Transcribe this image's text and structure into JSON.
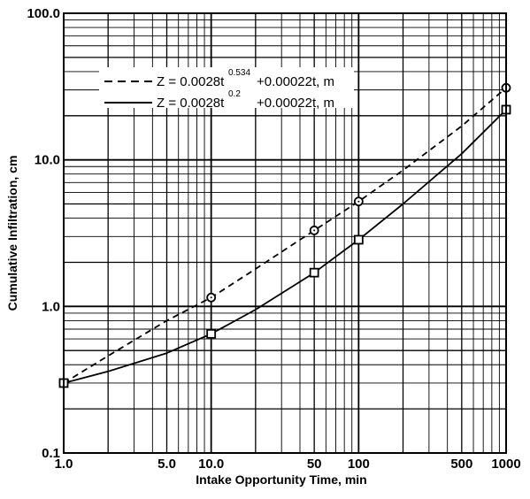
{
  "chart_data": {
    "type": "line",
    "xscale": "log",
    "yscale": "log",
    "xlim": [
      1,
      1000
    ],
    "ylim": [
      0.1,
      100
    ],
    "grid": true,
    "xlabel": "Intake Opportunity Time, min",
    "ylabel": "Cumulative Infiltration, cm",
    "xticks": [
      {
        "value": 1,
        "label": "1.0"
      },
      {
        "value": 5,
        "label": "5.0"
      },
      {
        "value": 10,
        "label": "10.0"
      },
      {
        "value": 50,
        "label": "50"
      },
      {
        "value": 100,
        "label": "100"
      },
      {
        "value": 500,
        "label": "500"
      },
      {
        "value": 1000,
        "label": "1000"
      }
    ],
    "yticks": [
      {
        "value": 0.1,
        "label": "0.1"
      },
      {
        "value": 1,
        "label": "1.0"
      },
      {
        "value": 10,
        "label": "10.0"
      },
      {
        "value": 100,
        "label": "100.0"
      }
    ],
    "legend_position": "top-left",
    "series": [
      {
        "legend_main": "Z = 0.0028t",
        "legend_exp": "0.534",
        "legend_tail": "+0.00022t, m",
        "style": "dashed",
        "marker": "circle",
        "points": [
          {
            "x": 1,
            "y": 0.3
          },
          {
            "x": 10,
            "y": 1.15
          },
          {
            "x": 50,
            "y": 3.3
          },
          {
            "x": 100,
            "y": 5.2
          },
          {
            "x": 1000,
            "y": 31
          }
        ],
        "curve": [
          {
            "x": 1,
            "y": 0.3
          },
          {
            "x": 2,
            "y": 0.46
          },
          {
            "x": 5,
            "y": 0.8
          },
          {
            "x": 10,
            "y": 1.15
          },
          {
            "x": 20,
            "y": 1.8
          },
          {
            "x": 50,
            "y": 3.3
          },
          {
            "x": 100,
            "y": 5.2
          },
          {
            "x": 200,
            "y": 8.5
          },
          {
            "x": 500,
            "y": 17
          },
          {
            "x": 1000,
            "y": 31
          }
        ]
      },
      {
        "legend_main": "Z = 0.0028t",
        "legend_exp": "0.2",
        "legend_tail": "+0.00022t, m",
        "style": "solid",
        "marker": "square",
        "points": [
          {
            "x": 1,
            "y": 0.3
          },
          {
            "x": 10,
            "y": 0.65
          },
          {
            "x": 50,
            "y": 1.7
          },
          {
            "x": 100,
            "y": 2.85
          },
          {
            "x": 1000,
            "y": 22
          }
        ],
        "curve": [
          {
            "x": 1,
            "y": 0.3
          },
          {
            "x": 2,
            "y": 0.36
          },
          {
            "x": 5,
            "y": 0.48
          },
          {
            "x": 10,
            "y": 0.65
          },
          {
            "x": 20,
            "y": 0.95
          },
          {
            "x": 50,
            "y": 1.7
          },
          {
            "x": 100,
            "y": 2.85
          },
          {
            "x": 200,
            "y": 5.0
          },
          {
            "x": 500,
            "y": 11
          },
          {
            "x": 1000,
            "y": 22
          }
        ]
      }
    ]
  }
}
